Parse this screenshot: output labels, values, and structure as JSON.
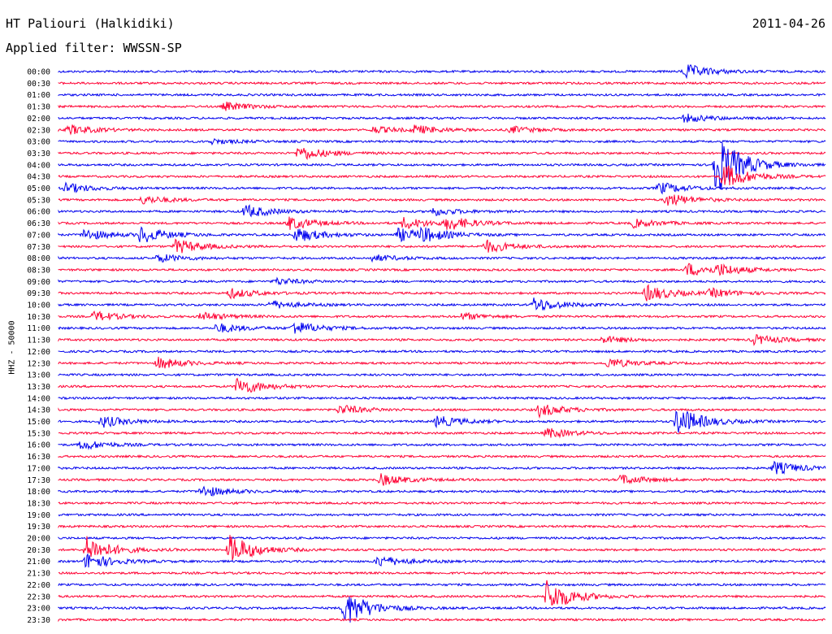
{
  "header": {
    "station": "HT Paliouri (Halkidiki)",
    "date": "2011-04-26",
    "filter": "Applied filter: WWSSN-SP"
  },
  "colors": {
    "odd_row": "#0000ee",
    "even_row": "#ff0033"
  },
  "chart_data": {
    "type": "line",
    "title": "HT Paliouri (Halkidiki)",
    "subtitle": "Applied filter: WWSSN-SP",
    "ylabel": "HHZ - 50000",
    "xlabel": "",
    "row_labels": [
      "00:00",
      "00:30",
      "01:00",
      "01:30",
      "02:00",
      "02:30",
      "03:00",
      "03:30",
      "04:00",
      "04:30",
      "05:00",
      "05:30",
      "06:00",
      "06:30",
      "07:00",
      "07:30",
      "08:00",
      "08:30",
      "09:00",
      "09:30",
      "10:00",
      "10:30",
      "11:00",
      "11:30",
      "12:00",
      "12:30",
      "13:00",
      "13:30",
      "14:00",
      "14:30",
      "15:00",
      "15:30",
      "16:00",
      "16:30",
      "17:00",
      "17:30",
      "18:00",
      "18:30",
      "19:00",
      "19:30",
      "20:00",
      "20:30",
      "21:00",
      "21:30",
      "22:00",
      "22:30",
      "23:00",
      "23:30"
    ],
    "row_minutes": 30,
    "series_colors": [
      "#0000ee",
      "#ff0033"
    ],
    "events": [
      {
        "row": 0,
        "minute": 24.5,
        "amp": 9
      },
      {
        "row": 3,
        "minute": 6.5,
        "amp": 5
      },
      {
        "row": 4,
        "minute": 24.5,
        "amp": 5
      },
      {
        "row": 5,
        "minute": 0.4,
        "amp": 6
      },
      {
        "row": 5,
        "minute": 12.3,
        "amp": 4
      },
      {
        "row": 5,
        "minute": 13.9,
        "amp": 5
      },
      {
        "row": 5,
        "minute": 17.7,
        "amp": 4
      },
      {
        "row": 6,
        "minute": 6.0,
        "amp": 3
      },
      {
        "row": 7,
        "minute": 9.4,
        "amp": 9
      },
      {
        "row": 8,
        "minute": 25.7,
        "amp": 40
      },
      {
        "row": 9,
        "minute": 26.0,
        "amp": 16
      },
      {
        "row": 10,
        "minute": 0.3,
        "amp": 6
      },
      {
        "row": 10,
        "minute": 23.5,
        "amp": 7
      },
      {
        "row": 11,
        "minute": 3.3,
        "amp": 5
      },
      {
        "row": 11,
        "minute": 23.8,
        "amp": 8
      },
      {
        "row": 12,
        "minute": 7.3,
        "amp": 8
      },
      {
        "row": 12,
        "minute": 14.6,
        "amp": 5
      },
      {
        "row": 13,
        "minute": 9.0,
        "amp": 8
      },
      {
        "row": 13,
        "minute": 13.5,
        "amp": 7
      },
      {
        "row": 13,
        "minute": 15.2,
        "amp": 8
      },
      {
        "row": 13,
        "minute": 22.5,
        "amp": 5
      },
      {
        "row": 14,
        "minute": 1.0,
        "amp": 7
      },
      {
        "row": 14,
        "minute": 3.2,
        "amp": 10
      },
      {
        "row": 14,
        "minute": 9.3,
        "amp": 9
      },
      {
        "row": 14,
        "minute": 13.3,
        "amp": 8
      },
      {
        "row": 14,
        "minute": 14.2,
        "amp": 7
      },
      {
        "row": 15,
        "minute": 4.6,
        "amp": 9
      },
      {
        "row": 15,
        "minute": 16.7,
        "amp": 8
      },
      {
        "row": 16,
        "minute": 3.9,
        "amp": 5
      },
      {
        "row": 16,
        "minute": 12.3,
        "amp": 4
      },
      {
        "row": 17,
        "minute": 24.6,
        "amp": 8
      },
      {
        "row": 17,
        "minute": 25.8,
        "amp": 6
      },
      {
        "row": 18,
        "minute": 8.5,
        "amp": 4
      },
      {
        "row": 19,
        "minute": 6.7,
        "amp": 6
      },
      {
        "row": 19,
        "minute": 23.0,
        "amp": 10
      },
      {
        "row": 19,
        "minute": 25.5,
        "amp": 5
      },
      {
        "row": 20,
        "minute": 8.3,
        "amp": 5
      },
      {
        "row": 20,
        "minute": 18.6,
        "amp": 9
      },
      {
        "row": 21,
        "minute": 1.4,
        "amp": 6
      },
      {
        "row": 21,
        "minute": 5.6,
        "amp": 5
      },
      {
        "row": 21,
        "minute": 15.8,
        "amp": 4
      },
      {
        "row": 22,
        "minute": 6.2,
        "amp": 6
      },
      {
        "row": 22,
        "minute": 9.2,
        "amp": 8
      },
      {
        "row": 23,
        "minute": 21.3,
        "amp": 4
      },
      {
        "row": 23,
        "minute": 27.2,
        "amp": 6
      },
      {
        "row": 25,
        "minute": 3.9,
        "amp": 7
      },
      {
        "row": 25,
        "minute": 21.5,
        "amp": 6
      },
      {
        "row": 27,
        "minute": 7.0,
        "amp": 11
      },
      {
        "row": 29,
        "minute": 11.0,
        "amp": 6
      },
      {
        "row": 29,
        "minute": 18.8,
        "amp": 8
      },
      {
        "row": 30,
        "minute": 1.7,
        "amp": 7
      },
      {
        "row": 30,
        "minute": 14.8,
        "amp": 7
      },
      {
        "row": 30,
        "minute": 24.2,
        "amp": 18
      },
      {
        "row": 31,
        "minute": 19.1,
        "amp": 6
      },
      {
        "row": 32,
        "minute": 0.9,
        "amp": 6
      },
      {
        "row": 34,
        "minute": 28.0,
        "amp": 8
      },
      {
        "row": 35,
        "minute": 12.6,
        "amp": 7
      },
      {
        "row": 35,
        "minute": 22.0,
        "amp": 6
      },
      {
        "row": 36,
        "minute": 5.6,
        "amp": 7
      },
      {
        "row": 41,
        "minute": 1.1,
        "amp": 16
      },
      {
        "row": 41,
        "minute": 6.7,
        "amp": 18
      },
      {
        "row": 42,
        "minute": 1.1,
        "amp": 10
      },
      {
        "row": 42,
        "minute": 12.5,
        "amp": 7
      },
      {
        "row": 45,
        "minute": 19.1,
        "amp": 20
      },
      {
        "row": 46,
        "minute": 11.2,
        "amp": 22
      }
    ]
  }
}
